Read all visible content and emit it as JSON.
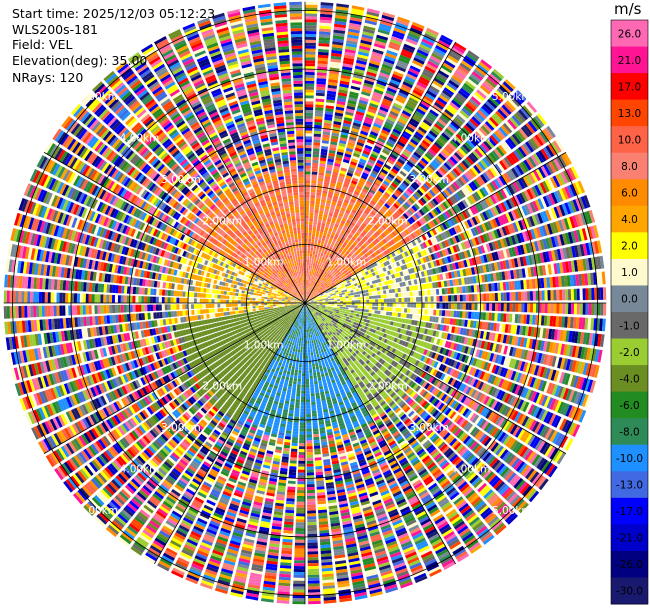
{
  "info": {
    "start_time": "Start time: 2025/12/03 05:12:23",
    "station": "WLS200s-181",
    "field": "Field: VEL",
    "elevation": "Elevation(deg): 35.00",
    "nrays": "NRays: 120"
  },
  "chart_data": {
    "type": "ppi",
    "field": "VEL",
    "instrument": "WLS200s-181",
    "start_time": "2025/12/03 05:12:23",
    "elevation_deg": 35.0,
    "n_rays": 120,
    "range_rings_km": [
      1.0,
      2.0,
      3.0,
      4.0,
      5.0
    ],
    "ring_label": "km",
    "max_range_km": 5.15,
    "spoke_azimuths_deg": [
      0,
      30,
      60,
      90,
      120,
      150,
      180,
      210,
      240,
      270,
      300,
      330
    ],
    "colorbar": {
      "unit": "m/s",
      "min": -30.0,
      "max": 30.0,
      "tick_labels": [
        "26.0",
        "21.0",
        "17.0",
        "13.0",
        "10.0",
        "8.0",
        "6.0",
        "4.0",
        "2.0",
        "1.0",
        "0.0",
        "-1.0",
        "-2.0",
        "-4.0",
        "-6.0",
        "-8.0",
        "-10.0",
        "-13.0",
        "-17.0",
        "-21.0",
        "-26.0",
        "-30.0"
      ],
      "colors": [
        "#ff69b4",
        "#ff1493",
        "#ff0000",
        "#ff4500",
        "#ff6347",
        "#fa8072",
        "#ff8c00",
        "#ffa500",
        "#ffff00",
        "#fffacd",
        "#778899",
        "#696969",
        "#9acd32",
        "#6b8e23",
        "#228b22",
        "#2e8b57",
        "#1e90ff",
        "#4169e1",
        "#0000ff",
        "#0000cd",
        "#000080",
        "#191970"
      ]
    },
    "coherent_range_km": 2.3,
    "regions": [
      {
        "azimuth_range_deg": [
          300,
          360
        ],
        "velocity_ms": [
          4.0,
          10.0
        ],
        "description": "north-west near range"
      },
      {
        "azimuth_range_deg": [
          0,
          60
        ],
        "velocity_ms": [
          4.0,
          10.0
        ],
        "description": "north-east near range"
      },
      {
        "azimuth_range_deg": [
          60,
          100
        ],
        "velocity_ms": [
          -1.0,
          2.0
        ],
        "description": "east near range"
      },
      {
        "azimuth_range_deg": [
          100,
          150
        ],
        "velocity_ms": [
          -4.0,
          -1.0
        ],
        "description": "south-east near range"
      },
      {
        "azimuth_range_deg": [
          150,
          210
        ],
        "velocity_ms": [
          -13.0,
          -8.0
        ],
        "description": "south near range"
      },
      {
        "azimuth_range_deg": [
          210,
          260
        ],
        "velocity_ms": [
          -6.0,
          -4.0
        ],
        "description": "south-west near range"
      },
      {
        "azimuth_range_deg": [
          260,
          300
        ],
        "velocity_ms": [
          -1.0,
          4.0
        ],
        "description": "west near range"
      }
    ]
  }
}
